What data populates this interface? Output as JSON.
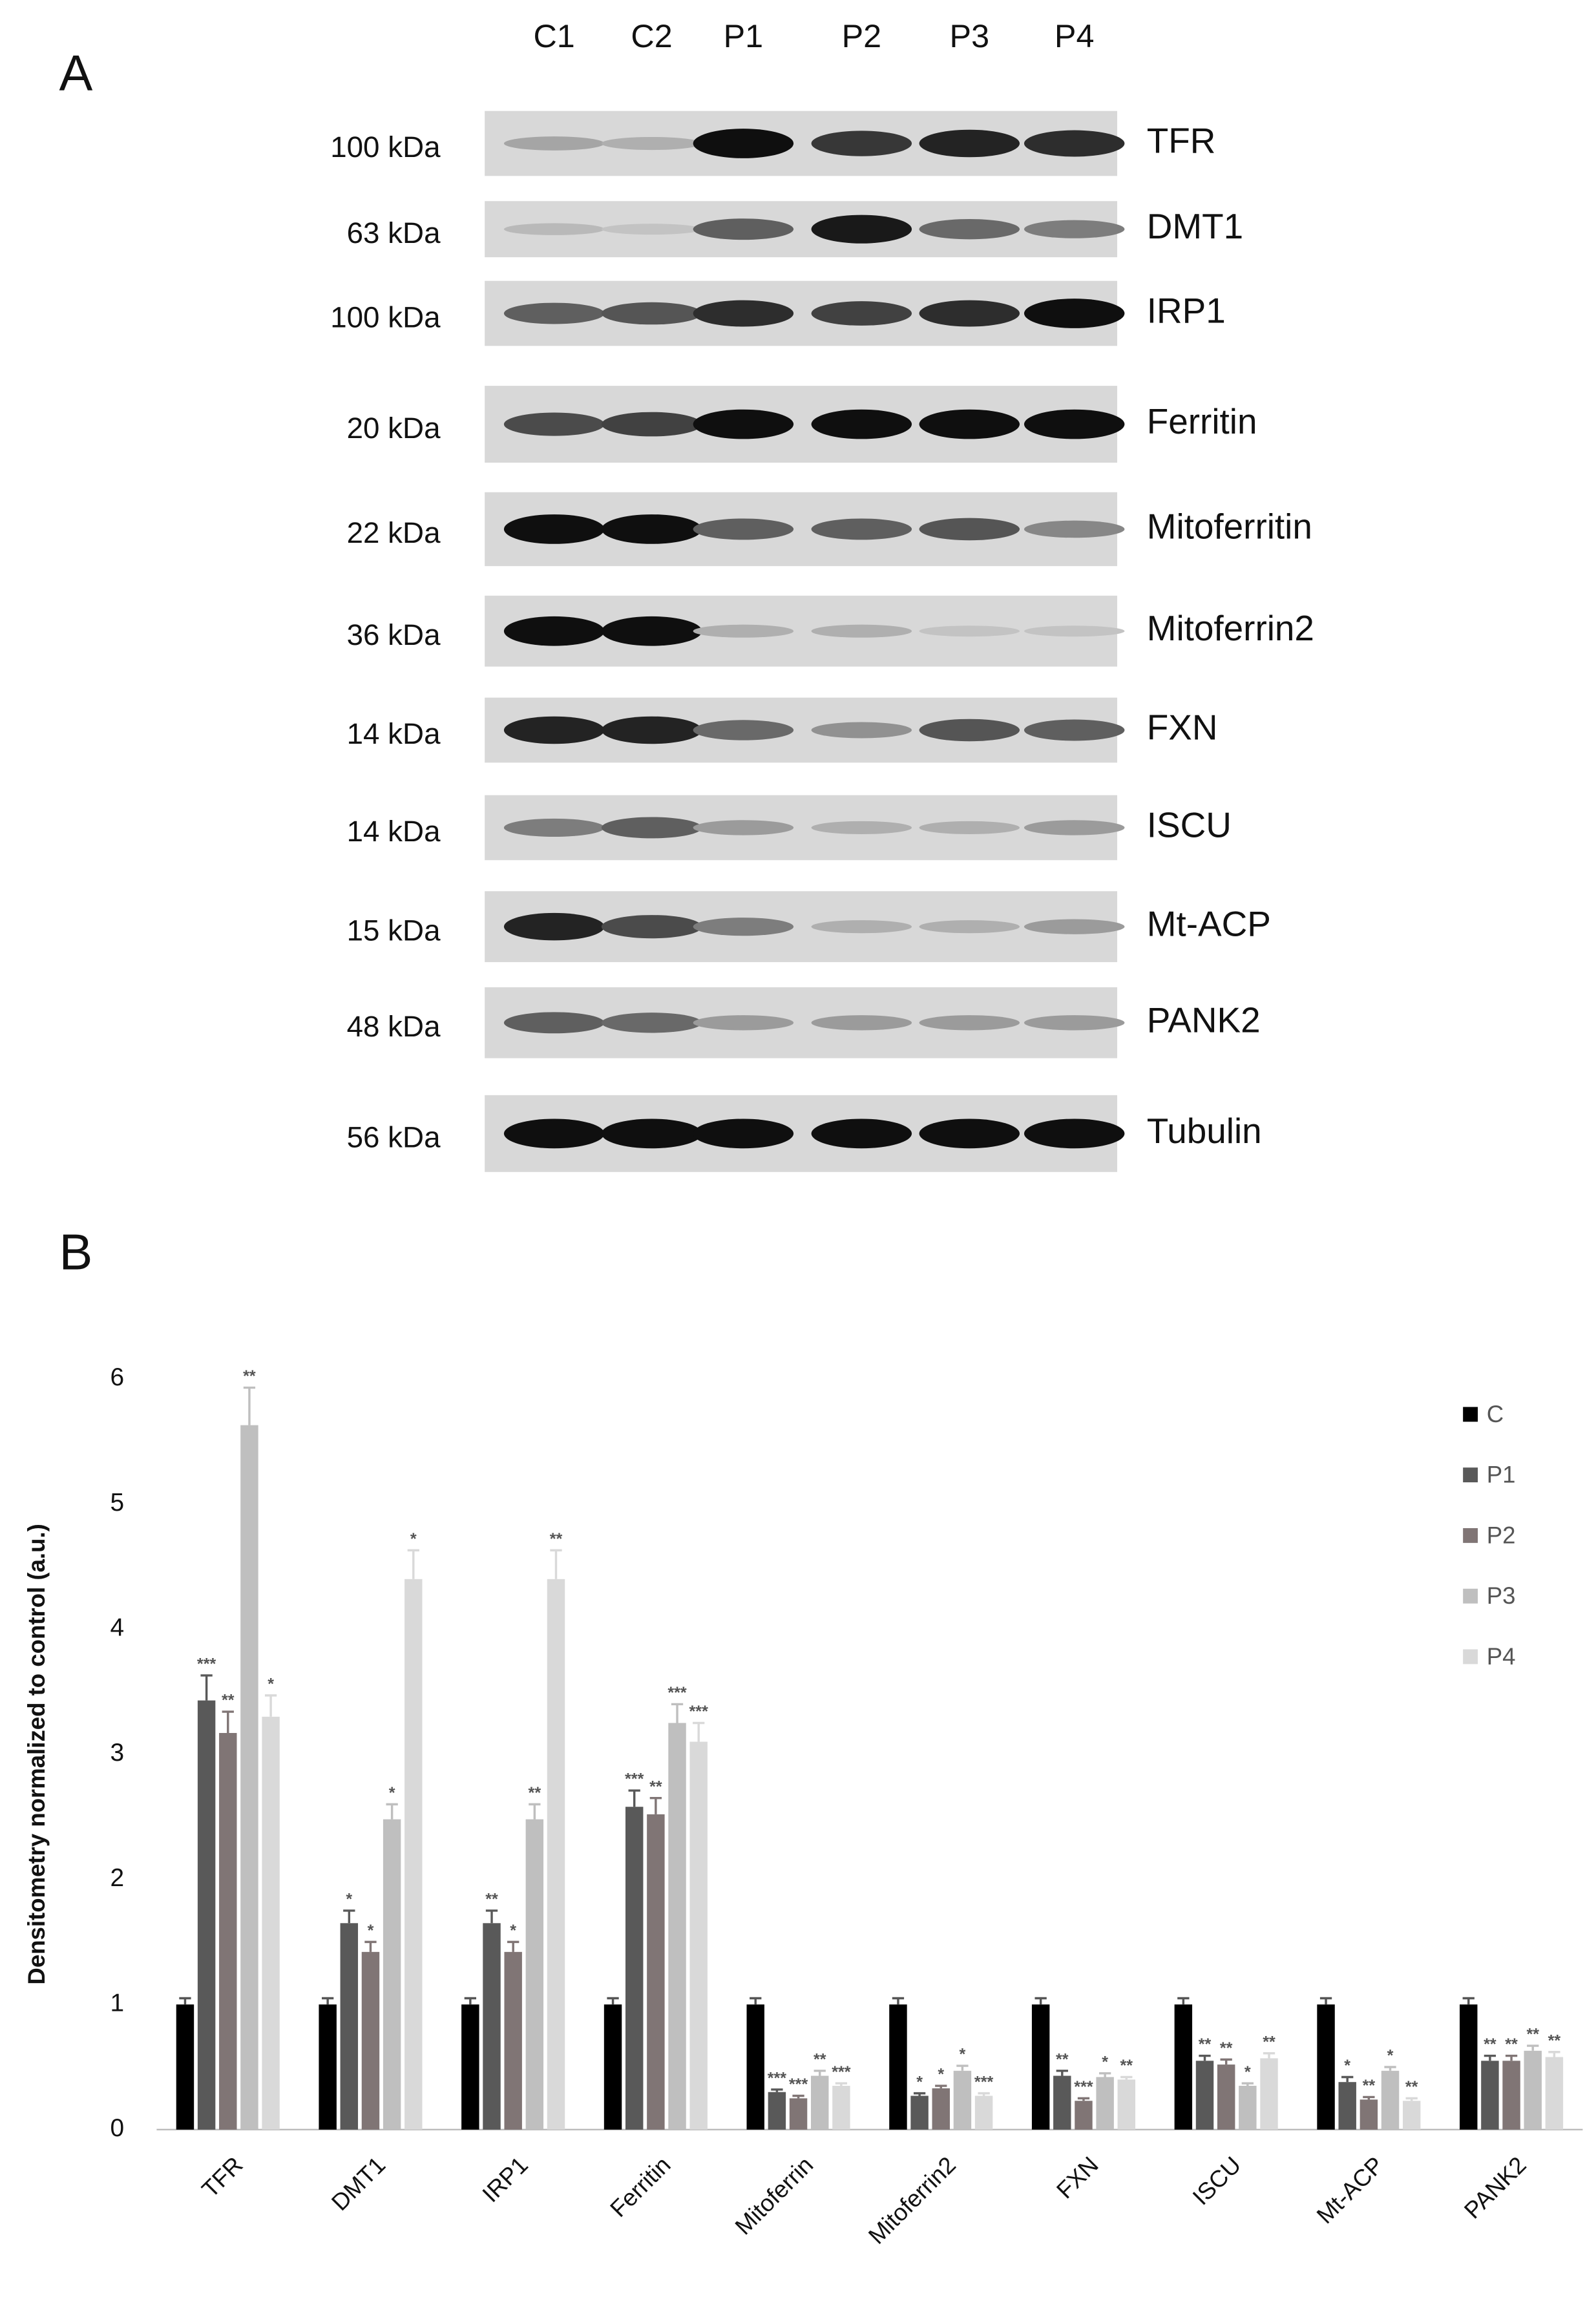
{
  "panel_a": {
    "label": "A",
    "lanes": [
      "C1",
      "C2",
      "P1",
      "P2",
      "P3",
      "P4"
    ],
    "rows": [
      {
        "weight": "100 kDa",
        "protein": "TFR"
      },
      {
        "weight": "63 kDa",
        "protein": "DMT1"
      },
      {
        "weight": "100 kDa",
        "protein": "IRP1"
      },
      {
        "weight": "20 kDa",
        "protein": "Ferritin"
      },
      {
        "weight": "22 kDa",
        "protein": "Mitoferritin"
      },
      {
        "weight": "36 kDa",
        "protein": "Mitoferrin2"
      },
      {
        "weight": "14 kDa",
        "protein": "FXN"
      },
      {
        "weight": "14 kDa",
        "protein": "ISCU"
      },
      {
        "weight": "15 kDa",
        "protein": "Mt-ACP"
      },
      {
        "weight": "48 kDa",
        "protein": "PANK2"
      },
      {
        "weight": "56 kDa",
        "protein": "Tubulin"
      }
    ]
  },
  "panel_b": {
    "label": "B"
  },
  "chart_data": {
    "type": "bar",
    "y_label": "Densitometry normalized to control (a.u.)",
    "categories": [
      "TFR",
      "DMT1",
      "IRP1",
      "Ferritin",
      "Mitoferrin",
      "Mitoferrin2",
      "FXN",
      "ISCU",
      "Mt-ACP",
      "PANK2"
    ],
    "series": [
      {
        "name": "C",
        "color": "#000000",
        "values": [
          1,
          1,
          1,
          1,
          1,
          1,
          1,
          1,
          1,
          1
        ],
        "errors": [
          0.05,
          0.05,
          0.05,
          0.05,
          0.05,
          0.05,
          0.05,
          0.05,
          0.05,
          0.05
        ],
        "labels": [
          null,
          null,
          null,
          null,
          null,
          null,
          null,
          null,
          null,
          null
        ]
      },
      {
        "name": "P1",
        "color": "#595959",
        "values": [
          3.43,
          1.65,
          1.65,
          2.58,
          0.3,
          0.27,
          0.43,
          0.55,
          0.38,
          0.55
        ],
        "errors": [
          0.2,
          0.1,
          0.1,
          0.13,
          0.02,
          0.02,
          0.04,
          0.04,
          0.04,
          0.04
        ],
        "labels": [
          "***",
          "*",
          "**",
          "***",
          "***",
          "*",
          "**",
          "**",
          "*",
          "**"
        ]
      },
      {
        "name": "P2",
        "color": "#807575",
        "values": [
          3.17,
          1.42,
          1.42,
          2.52,
          0.25,
          0.33,
          0.23,
          0.52,
          0.24,
          0.55
        ],
        "errors": [
          0.17,
          0.08,
          0.08,
          0.13,
          0.02,
          0.02,
          0.02,
          0.04,
          0.02,
          0.04
        ],
        "labels": [
          "**",
          "*",
          "*",
          "**",
          "***",
          "*",
          "***",
          "**",
          "**",
          "**"
        ]
      },
      {
        "name": "P3",
        "color": "#bfbfbf",
        "values": [
          5.63,
          2.48,
          2.48,
          3.25,
          0.43,
          0.47,
          0.42,
          0.35,
          0.47,
          0.63
        ],
        "errors": [
          0.3,
          0.12,
          0.12,
          0.15,
          0.04,
          0.04,
          0.03,
          0.02,
          0.03,
          0.04
        ],
        "labels": [
          "**",
          "*",
          "**",
          "***",
          "**",
          "*",
          "*",
          "*",
          "*",
          "**"
        ]
      },
      {
        "name": "P4",
        "color": "#d9d9d9",
        "values": [
          3.3,
          4.4,
          4.4,
          3.1,
          0.35,
          0.27,
          0.4,
          0.57,
          0.23,
          0.58
        ],
        "errors": [
          0.17,
          0.23,
          0.23,
          0.15,
          0.02,
          0.02,
          0.02,
          0.04,
          0.02,
          0.04
        ],
        "labels": [
          "*",
          "*",
          "**",
          "***",
          "***",
          "***",
          "**",
          "**",
          "**",
          "**"
        ]
      }
    ],
    "ylim": [
      0,
      6
    ],
    "yticks": [
      0,
      1,
      2,
      3,
      4,
      5,
      6
    ],
    "grid": false,
    "legend": "top right"
  }
}
